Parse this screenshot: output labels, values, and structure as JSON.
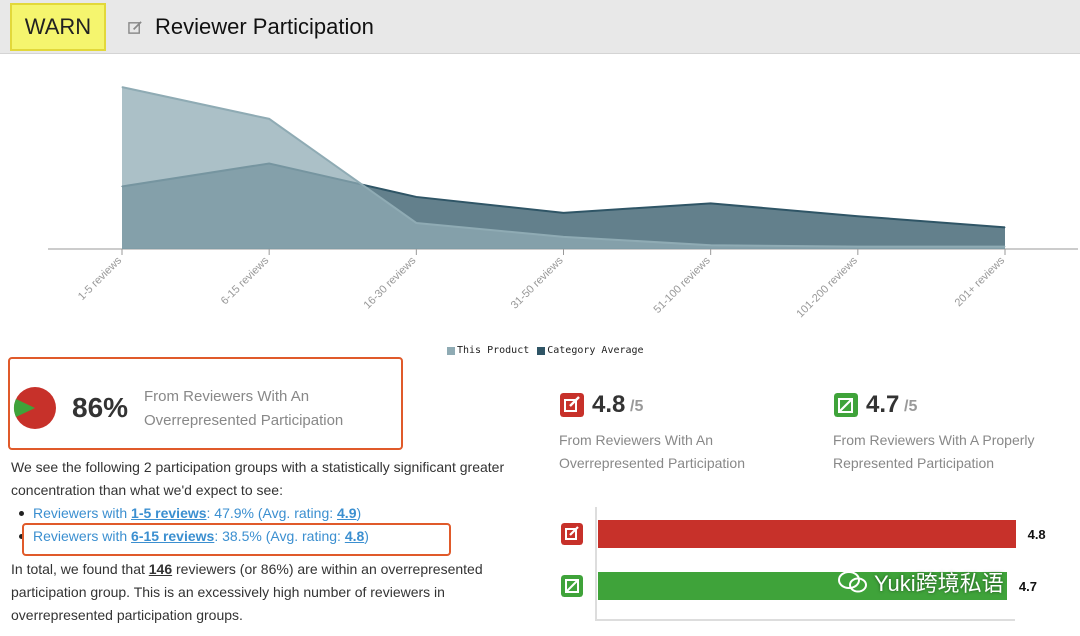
{
  "header": {
    "badge": "WARN",
    "title": "Reviewer Participation",
    "title_icon": "edit-icon"
  },
  "chart_data": {
    "type": "area",
    "categories": [
      "1-5 reviews",
      "6-15 reviews",
      "16-30 reviews",
      "31-50 reviews",
      "51-100 reviews",
      "101-200 reviews",
      "201+ reviews"
    ],
    "series": [
      {
        "name": "This Product",
        "values": [
          47.9,
          38.5,
          7.7,
          3.6,
          1.1,
          0.7,
          0.7
        ],
        "color": "#8fabb4"
      },
      {
        "name": "Category Average",
        "values": [
          18.5,
          25.3,
          15.4,
          10.7,
          13.5,
          9.7,
          6.4
        ],
        "color": "#2f5566"
      }
    ],
    "ylim": [
      0,
      50
    ],
    "grid": false,
    "legend_placement": "bottom-center"
  },
  "summary": {
    "percent": "86%",
    "description": "From Reviewers With An Overrepresented Participation",
    "pie_fraction": 0.86,
    "pie_colors": {
      "main": "#c7312a",
      "rest": "#3fa33a"
    }
  },
  "intro_text": "We see the following 2 participation groups with a statistically significant greater concentration than what we'd expect to see:",
  "groups": [
    {
      "prefix": "Reviewers with ",
      "link": "1-5 reviews",
      "mid": ": 47.9% (Avg. rating: ",
      "rating": "4.9",
      "suffix": ")"
    },
    {
      "prefix": "Reviewers with ",
      "link": "6-15 reviews",
      "mid": ": 38.5% (Avg. rating: ",
      "rating": "4.8",
      "suffix": ")"
    }
  ],
  "total_text": {
    "before": "In total, we found that ",
    "count": "146",
    "after": " reviewers (or 86%) are within an overrepresented participation group. This is an excessively high number of reviewers in overrepresented participation groups."
  },
  "ratings": {
    "overrepresented": {
      "value": "4.8",
      "denom": "/5",
      "desc": "From Reviewers With An Overrepresented Participation",
      "icon": "edit-icon",
      "color": "#c7312a"
    },
    "proper": {
      "value": "4.7",
      "denom": "/5",
      "desc": "From Reviewers With A Properly Represented Participation",
      "icon": "edit-check-icon",
      "color": "#3fa33a"
    }
  },
  "bar_chart": {
    "max": 5,
    "bars": [
      {
        "value": 4.8,
        "label": "4.8",
        "color": "#c7312a",
        "icon": "edit-icon"
      },
      {
        "value": 4.7,
        "label": "4.7",
        "color": "#3fa33a",
        "icon": "edit-check-icon"
      }
    ]
  },
  "watermark": "Yuki跨境私语"
}
